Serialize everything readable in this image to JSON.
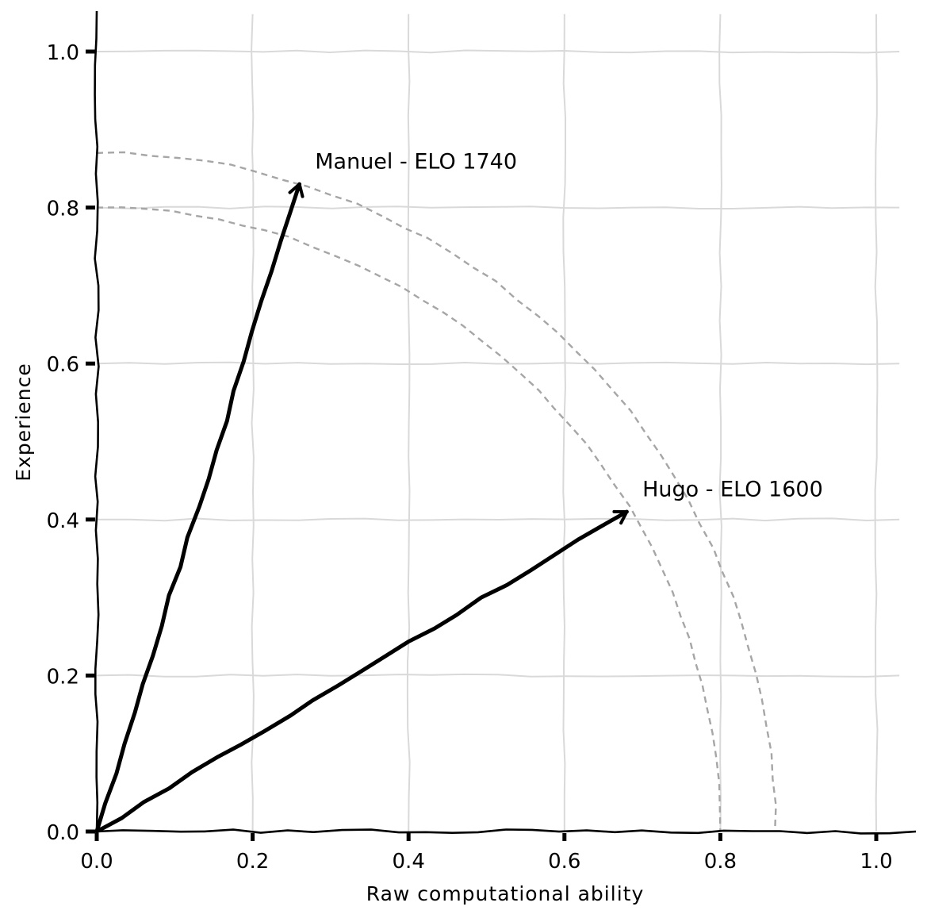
{
  "chart_data": {
    "type": "line",
    "title": "",
    "xlabel": "Raw computational ability",
    "ylabel": "Experience",
    "xlim": [
      0,
      1.05
    ],
    "ylim": [
      0,
      1.05
    ],
    "xticks": [
      0.0,
      0.2,
      0.4,
      0.6,
      0.8,
      1.0
    ],
    "yticks": [
      0.0,
      0.2,
      0.4,
      0.6,
      0.8,
      1.0
    ],
    "xtick_labels": [
      "0.0",
      "0.2",
      "0.4",
      "0.6",
      "0.8",
      "1.0"
    ],
    "ytick_labels": [
      "0.0",
      "0.2",
      "0.4",
      "0.6",
      "0.8",
      "1.0"
    ],
    "grid": true,
    "style": "xkcd",
    "arrows": [
      {
        "label": "Manuel - ELO 1740",
        "from": [
          0,
          0
        ],
        "to": [
          0.26,
          0.83
        ]
      },
      {
        "label": "Hugo - ELO 1600",
        "from": [
          0,
          0
        ],
        "to": [
          0.68,
          0.41
        ]
      }
    ],
    "arcs": [
      {
        "radius": 0.8,
        "style": "dashed",
        "color": "#a6a6a6"
      },
      {
        "radius": 0.87,
        "style": "dashed",
        "color": "#a6a6a6"
      }
    ],
    "annotations": [
      {
        "text": "Manuel - ELO 1740",
        "x": 0.28,
        "y": 0.86
      },
      {
        "text": "Hugo - ELO 1600",
        "x": 0.7,
        "y": 0.44
      }
    ]
  }
}
